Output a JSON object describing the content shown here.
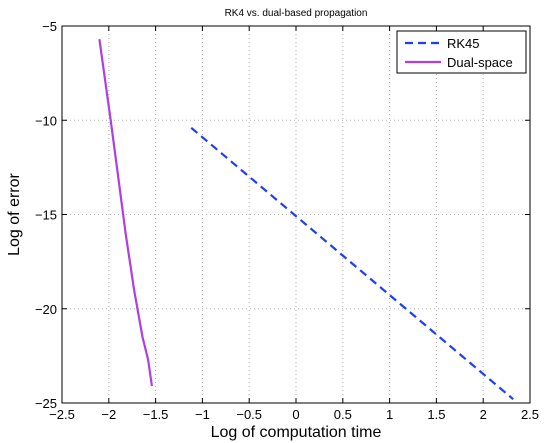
{
  "chart_data": {
    "type": "line",
    "title": "RK4 vs. dual-based propagation",
    "xlabel": "Log of computation time",
    "ylabel": "Log of error",
    "xlim": [
      -2.5,
      2.5
    ],
    "ylim": [
      -25,
      -5
    ],
    "x_ticks": [
      -2.5,
      -2,
      -1.5,
      -1,
      -0.5,
      0,
      0.5,
      1,
      1.5,
      2,
      2.5
    ],
    "x_tick_labels": [
      "−2.5",
      "−2",
      "−1.5",
      "−1",
      "−0.5",
      "0",
      "0.5",
      "1",
      "1.5",
      "2",
      "2.5"
    ],
    "y_ticks": [
      -25,
      -20,
      -15,
      -10,
      -5
    ],
    "y_tick_labels": [
      "−25",
      "−20",
      "−15",
      "−10",
      "−5"
    ],
    "grid": true,
    "legend_position": "top-right",
    "series": [
      {
        "name": "RK45",
        "color": "#1f3ff5",
        "line_style": "dashed",
        "x": [
          -1.12,
          2.32
        ],
        "y": [
          -10.4,
          -24.8
        ]
      },
      {
        "name": "Dual-space",
        "color": "#b03ee6",
        "line_style": "solid",
        "x": [
          -2.1,
          -1.98,
          -1.9,
          -1.82,
          -1.73,
          -1.64,
          -1.58,
          -1.54
        ],
        "y": [
          -5.7,
          -10.0,
          -13.0,
          -16.0,
          -19.0,
          -21.5,
          -22.7,
          -24.1
        ]
      }
    ]
  }
}
